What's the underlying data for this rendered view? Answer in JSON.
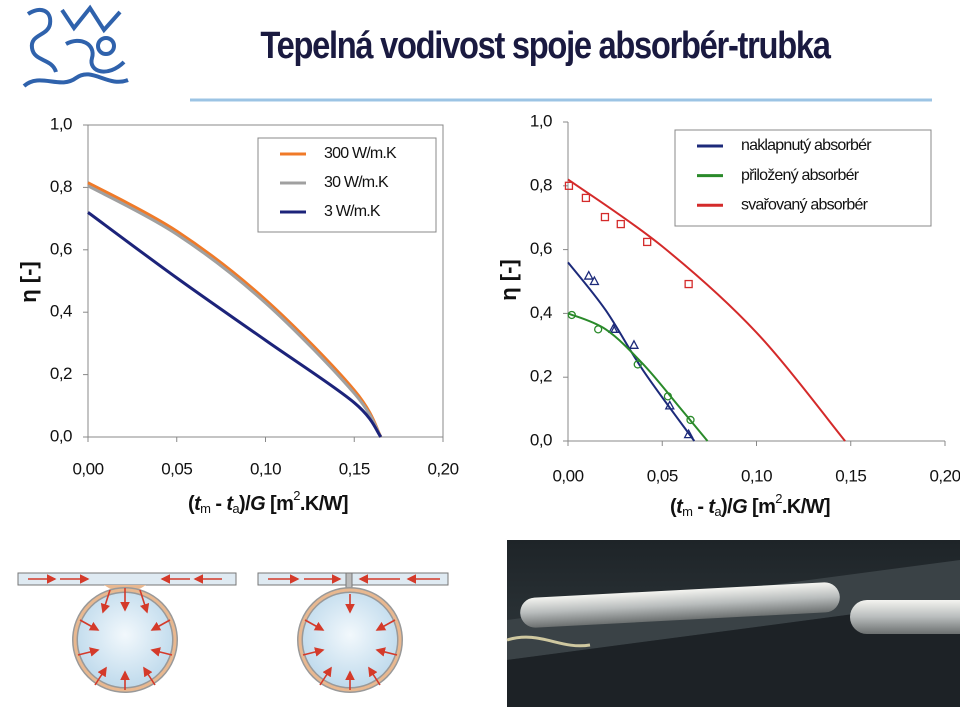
{
  "title": "Tepelná vodivost spoje absorbér-trubka",
  "chart_data": [
    {
      "type": "line",
      "ylabel": "η [-]",
      "xlabel": [
        "(",
        "t",
        "m",
        " - ",
        "t",
        "a",
        ")/",
        "G",
        " [m",
        "2",
        ".K/W]"
      ],
      "xlim": [
        0,
        0.2
      ],
      "ylim": [
        0,
        1
      ],
      "xticks": [
        {
          "value": 0,
          "label": "0,00"
        },
        {
          "value": 0.05,
          "label": "0,05"
        },
        {
          "value": 0.1,
          "label": "0,10"
        },
        {
          "value": 0.15,
          "label": "0,15"
        },
        {
          "value": 0.2,
          "label": "0,20"
        }
      ],
      "yticks": [
        {
          "value": 0,
          "label": "0,0"
        },
        {
          "value": 0.2,
          "label": "0,2"
        },
        {
          "value": 0.4,
          "label": "0,4"
        },
        {
          "value": 0.6,
          "label": "0,6"
        },
        {
          "value": 0.8,
          "label": "0,8"
        },
        {
          "value": 1,
          "label": "1,0"
        }
      ],
      "frame": true,
      "legend": "upper right",
      "series": [
        {
          "name": "300 W/m.K",
          "color": "#f07a28",
          "x": [
            0,
            0.05,
            0.1,
            0.15,
            0.165
          ],
          "values": [
            0.815,
            0.66,
            0.44,
            0.15,
            0
          ]
        },
        {
          "name": "30 W/m.K",
          "color": "#a0a0a0",
          "x": [
            0,
            0.05,
            0.1,
            0.15,
            0.165
          ],
          "values": [
            0.805,
            0.65,
            0.43,
            0.14,
            0
          ]
        },
        {
          "name": "3 W/m.K",
          "color": "#1c237a",
          "x": [
            0,
            0.05,
            0.1,
            0.15,
            0.165
          ],
          "values": [
            0.72,
            0.51,
            0.31,
            0.11,
            0
          ]
        }
      ]
    },
    {
      "type": "line",
      "ylabel": "η [-]",
      "xlabel": [
        "(",
        "t",
        "m",
        " - ",
        "t",
        "a",
        ")/",
        "G",
        " [m",
        "2",
        ".K/W]"
      ],
      "xlim": [
        0,
        0.2
      ],
      "ylim": [
        0,
        1
      ],
      "xticks": [
        {
          "value": 0,
          "label": "0,00"
        },
        {
          "value": 0.05,
          "label": "0,05"
        },
        {
          "value": 0.1,
          "label": "0,10"
        },
        {
          "value": 0.15,
          "label": "0,15"
        },
        {
          "value": 0.2,
          "label": "0,20"
        }
      ],
      "yticks": [
        {
          "value": 0,
          "label": "0,0"
        },
        {
          "value": 0.2,
          "label": "0,2"
        },
        {
          "value": 0.4,
          "label": "0,4"
        },
        {
          "value": 0.6,
          "label": "0,6"
        },
        {
          "value": 0.8,
          "label": "0,8"
        },
        {
          "value": 1,
          "label": "1,0"
        }
      ],
      "frame": false,
      "legend": "upper right",
      "series": [
        {
          "name": "naklapnutý absorbér",
          "color": "#1c2a7a",
          "marker": "triangle",
          "x": [
            0,
            0.02,
            0.04,
            0.067
          ],
          "values": [
            0.56,
            0.41,
            0.22,
            0
          ],
          "points_x": [
            0.011,
            0.014,
            0.024,
            0.025,
            0.035,
            0.054,
            0.064
          ],
          "points_y": [
            0.517,
            0.5,
            0.35,
            0.35,
            0.3,
            0.11,
            0.02
          ]
        },
        {
          "name": "přiložený absorbér",
          "color": "#2a8a2a",
          "marker": "circle",
          "x": [
            0,
            0.02,
            0.04,
            0.06,
            0.074
          ],
          "values": [
            0.4,
            0.35,
            0.24,
            0.1,
            0
          ],
          "points_x": [
            0.002,
            0.016,
            0.037,
            0.053,
            0.065
          ],
          "points_y": [
            0.395,
            0.35,
            0.24,
            0.14,
            0.066
          ]
        },
        {
          "name": "svařovaný absorbér",
          "color": "#d42a2a",
          "marker": "square",
          "x": [
            0,
            0.05,
            0.1,
            0.147
          ],
          "values": [
            0.82,
            0.61,
            0.34,
            0
          ],
          "points_x": [
            0.0005,
            0.0095,
            0.0196,
            0.028,
            0.042,
            0.064
          ],
          "points_y": [
            0.8,
            0.762,
            0.702,
            0.68,
            0.624,
            0.492
          ]
        }
      ]
    }
  ]
}
